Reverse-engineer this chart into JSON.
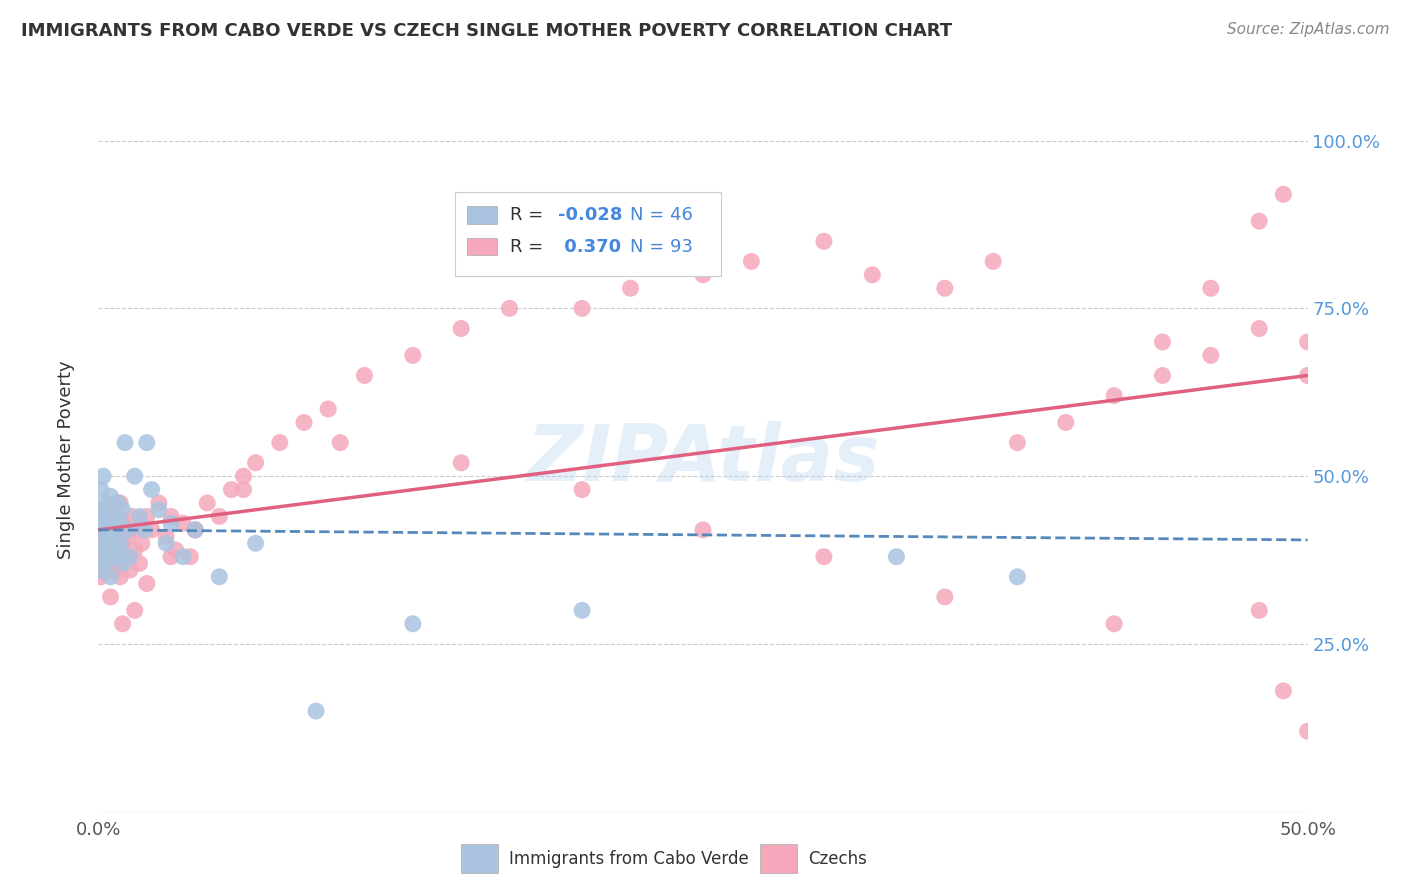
{
  "title": "IMMIGRANTS FROM CABO VERDE VS CZECH SINGLE MOTHER POVERTY CORRELATION CHART",
  "source_text": "Source: ZipAtlas.com",
  "ylabel": "Single Mother Poverty",
  "xlim": [
    0.0,
    0.5
  ],
  "ylim": [
    0.0,
    1.05
  ],
  "watermark": "ZIPAtlas",
  "cabo_verde_color": "#aac4e0",
  "czech_color": "#f5a8bb",
  "cabo_verde_line_color": "#5588bb",
  "czech_line_color": "#e06080",
  "cabo_verde_R": -0.028,
  "cabo_verde_N": 46,
  "czech_R": 0.37,
  "czech_N": 93,
  "cabo_verde_scatter_x": [
    0.0,
    0.0,
    0.001,
    0.001,
    0.001,
    0.002,
    0.002,
    0.002,
    0.003,
    0.003,
    0.003,
    0.004,
    0.004,
    0.005,
    0.005,
    0.005,
    0.006,
    0.006,
    0.007,
    0.007,
    0.008,
    0.008,
    0.009,
    0.009,
    0.01,
    0.01,
    0.011,
    0.012,
    0.013,
    0.015,
    0.017,
    0.019,
    0.02,
    0.022,
    0.025,
    0.028,
    0.03,
    0.035,
    0.04,
    0.05,
    0.065,
    0.09,
    0.13,
    0.2,
    0.33,
    0.38
  ],
  "cabo_verde_scatter_y": [
    0.38,
    0.42,
    0.45,
    0.36,
    0.48,
    0.43,
    0.4,
    0.5,
    0.37,
    0.44,
    0.46,
    0.41,
    0.39,
    0.42,
    0.47,
    0.35,
    0.43,
    0.38,
    0.41,
    0.44,
    0.39,
    0.46,
    0.4,
    0.43,
    0.37,
    0.45,
    0.55,
    0.42,
    0.38,
    0.5,
    0.44,
    0.42,
    0.55,
    0.48,
    0.45,
    0.4,
    0.43,
    0.38,
    0.42,
    0.35,
    0.4,
    0.15,
    0.28,
    0.3,
    0.38,
    0.35
  ],
  "czech_scatter_x": [
    0.0,
    0.0,
    0.001,
    0.001,
    0.001,
    0.002,
    0.002,
    0.002,
    0.003,
    0.003,
    0.003,
    0.004,
    0.004,
    0.004,
    0.005,
    0.005,
    0.005,
    0.006,
    0.006,
    0.007,
    0.007,
    0.008,
    0.008,
    0.009,
    0.009,
    0.01,
    0.01,
    0.011,
    0.012,
    0.013,
    0.014,
    0.015,
    0.016,
    0.017,
    0.018,
    0.02,
    0.022,
    0.025,
    0.028,
    0.03,
    0.032,
    0.035,
    0.038,
    0.04,
    0.045,
    0.05,
    0.055,
    0.06,
    0.065,
    0.075,
    0.085,
    0.095,
    0.11,
    0.13,
    0.15,
    0.17,
    0.2,
    0.22,
    0.25,
    0.27,
    0.3,
    0.32,
    0.35,
    0.37,
    0.38,
    0.4,
    0.42,
    0.44,
    0.46,
    0.48,
    0.49,
    0.5,
    0.44,
    0.46,
    0.48,
    0.5,
    0.48,
    0.49,
    0.5,
    0.42,
    0.35,
    0.3,
    0.25,
    0.2,
    0.15,
    0.1,
    0.06,
    0.04,
    0.03,
    0.02,
    0.015,
    0.01,
    0.005
  ],
  "czech_scatter_y": [
    0.36,
    0.4,
    0.38,
    0.43,
    0.35,
    0.42,
    0.39,
    0.45,
    0.37,
    0.41,
    0.44,
    0.36,
    0.39,
    0.43,
    0.38,
    0.41,
    0.45,
    0.37,
    0.4,
    0.44,
    0.36,
    0.42,
    0.38,
    0.46,
    0.35,
    0.4,
    0.43,
    0.38,
    0.41,
    0.36,
    0.44,
    0.39,
    0.42,
    0.37,
    0.4,
    0.44,
    0.42,
    0.46,
    0.41,
    0.44,
    0.39,
    0.43,
    0.38,
    0.42,
    0.46,
    0.44,
    0.48,
    0.5,
    0.52,
    0.55,
    0.58,
    0.6,
    0.65,
    0.68,
    0.72,
    0.75,
    0.75,
    0.78,
    0.8,
    0.82,
    0.85,
    0.8,
    0.78,
    0.82,
    0.55,
    0.58,
    0.62,
    0.65,
    0.68,
    0.72,
    0.92,
    0.65,
    0.7,
    0.78,
    0.88,
    0.7,
    0.3,
    0.18,
    0.12,
    0.28,
    0.32,
    0.38,
    0.42,
    0.48,
    0.52,
    0.55,
    0.48,
    0.42,
    0.38,
    0.34,
    0.3,
    0.28,
    0.32
  ]
}
